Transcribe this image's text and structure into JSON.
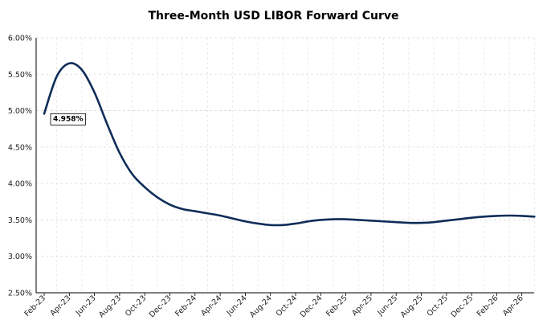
{
  "chart_data": {
    "type": "line",
    "title": "Three-Month USD LIBOR Forward Curve",
    "xlabel": "",
    "ylabel": "",
    "ylim": [
      2.5,
      6.0
    ],
    "yticks": [
      "6.00%",
      "5.50%",
      "5.00%",
      "4.50%",
      "4.00%",
      "3.50%",
      "3.00%",
      "2.50%"
    ],
    "xticks": [
      "Feb-23",
      "Apr-23",
      "Jun-23",
      "Aug-23",
      "Oct-23",
      "Dec-23",
      "Feb-24",
      "Apr-24",
      "Jun-24",
      "Aug-24",
      "Oct-24",
      "Dec-24",
      "Feb-25",
      "Apr-25",
      "Jun-25",
      "Aug-25",
      "Oct-25",
      "Dec-25",
      "Feb-26",
      "Apr-26"
    ],
    "grid": true,
    "legend": "none",
    "annotation": "4.958%",
    "series": [
      {
        "color": "#0f2d59",
        "x": [
          "Feb-23",
          "Mar-23",
          "Apr-23",
          "May-23",
          "Jun-23",
          "Jul-23",
          "Aug-23",
          "Sep-23",
          "Oct-23",
          "Nov-23",
          "Dec-23",
          "Jan-24",
          "Feb-24",
          "Mar-24",
          "Apr-24",
          "May-24",
          "Jun-24",
          "Jul-24",
          "Aug-24",
          "Sep-24",
          "Oct-24",
          "Nov-24",
          "Dec-24",
          "Jan-25",
          "Feb-25",
          "Mar-25",
          "Apr-25",
          "May-25",
          "Jun-25",
          "Jul-25",
          "Aug-25",
          "Sep-25",
          "Oct-25",
          "Nov-25",
          "Dec-25",
          "Jan-26",
          "Feb-26",
          "Mar-26",
          "Apr-26",
          "May-26"
        ],
        "values": [
          4.958,
          5.47,
          5.65,
          5.56,
          5.25,
          4.82,
          4.42,
          4.13,
          3.95,
          3.81,
          3.71,
          3.65,
          3.62,
          3.59,
          3.56,
          3.52,
          3.48,
          3.45,
          3.43,
          3.43,
          3.45,
          3.48,
          3.5,
          3.51,
          3.51,
          3.5,
          3.49,
          3.48,
          3.47,
          3.46,
          3.46,
          3.47,
          3.49,
          3.51,
          3.53,
          3.545,
          3.555,
          3.56,
          3.555,
          3.545
        ]
      }
    ]
  }
}
